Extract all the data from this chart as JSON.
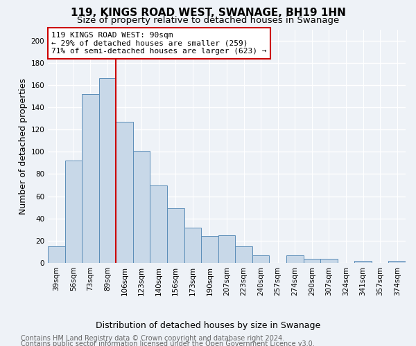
{
  "title": "119, KINGS ROAD WEST, SWANAGE, BH19 1HN",
  "subtitle": "Size of property relative to detached houses in Swanage",
  "xlabel": "Distribution of detached houses by size in Swanage",
  "ylabel": "Number of detached properties",
  "categories": [
    "39sqm",
    "56sqm",
    "73sqm",
    "89sqm",
    "106sqm",
    "123sqm",
    "140sqm",
    "156sqm",
    "173sqm",
    "190sqm",
    "207sqm",
    "223sqm",
    "240sqm",
    "257sqm",
    "274sqm",
    "290sqm",
    "307sqm",
    "324sqm",
    "341sqm",
    "357sqm",
    "374sqm"
  ],
  "values": [
    15,
    92,
    152,
    166,
    127,
    101,
    70,
    49,
    32,
    24,
    25,
    15,
    7,
    0,
    7,
    4,
    4,
    0,
    2,
    0,
    2
  ],
  "bar_color": "#c8d8e8",
  "bar_edge_color": "#5b8db8",
  "red_line_index": 3.5,
  "annotation_line1": "119 KINGS ROAD WEST: 90sqm",
  "annotation_line2": "← 29% of detached houses are smaller (259)",
  "annotation_line3": "71% of semi-detached houses are larger (623) →",
  "annotation_box_color": "white",
  "annotation_box_edge_color": "#cc0000",
  "red_line_color": "#cc0000",
  "ylim": [
    0,
    210
  ],
  "yticks": [
    0,
    20,
    40,
    60,
    80,
    100,
    120,
    140,
    160,
    180,
    200
  ],
  "footer_line1": "Contains HM Land Registry data © Crown copyright and database right 2024.",
  "footer_line2": "Contains public sector information licensed under the Open Government Licence v3.0.",
  "bg_color": "#eef2f7",
  "grid_color": "white",
  "title_fontsize": 11,
  "subtitle_fontsize": 9.5,
  "axis_label_fontsize": 9,
  "tick_fontsize": 7.5,
  "annotation_fontsize": 8,
  "footer_fontsize": 7
}
